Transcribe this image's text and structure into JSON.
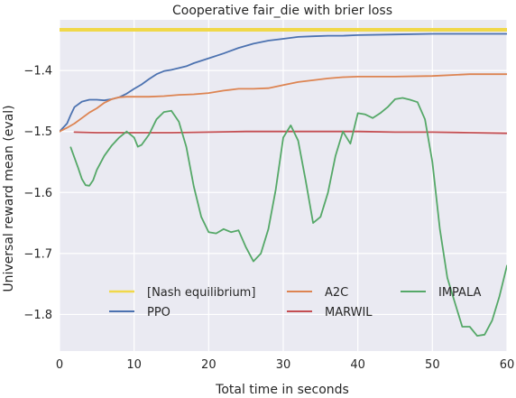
{
  "chart_data": {
    "type": "line",
    "title": "Cooperative fair_die with brier loss",
    "xlabel": "Total time in seconds",
    "ylabel": "Universal reward mean (eval)",
    "xlim": [
      0,
      60
    ],
    "ylim": [
      -1.86,
      -1.317
    ],
    "x_ticks": [
      0,
      10,
      20,
      30,
      40,
      50,
      60
    ],
    "y_ticks": [
      -1.8,
      -1.7,
      -1.6,
      -1.5,
      -1.4
    ],
    "grid": true,
    "background": "#eaeaf2",
    "legend_placement": "lower-center",
    "series": [
      {
        "name": "[Nash equilibrium]",
        "color": "#f0d84a",
        "x": [
          0,
          60
        ],
        "y": [
          -1.3333,
          -1.3333
        ]
      },
      {
        "name": "PPO",
        "color": "#4c72b0",
        "x": [
          0,
          1,
          1.5,
          2,
          3,
          4,
          5,
          6,
          7,
          8,
          9,
          10,
          11,
          12,
          13,
          14,
          15,
          16,
          17,
          18,
          20,
          22,
          24,
          26,
          28,
          30,
          32,
          34,
          36,
          38,
          40,
          45,
          50,
          55,
          60
        ],
        "y": [
          -1.5,
          -1.487,
          -1.473,
          -1.46,
          -1.451,
          -1.448,
          -1.448,
          -1.449,
          -1.447,
          -1.444,
          -1.438,
          -1.43,
          -1.423,
          -1.414,
          -1.406,
          -1.401,
          -1.399,
          -1.396,
          -1.393,
          -1.388,
          -1.38,
          -1.372,
          -1.363,
          -1.356,
          -1.351,
          -1.348,
          -1.345,
          -1.344,
          -1.343,
          -1.343,
          -1.342,
          -1.341,
          -1.34,
          -1.34,
          -1.34
        ]
      },
      {
        "name": "A2C",
        "color": "#dd8452",
        "x": [
          0,
          1,
          2,
          3,
          4,
          5,
          6,
          7,
          8,
          9,
          10,
          12,
          14,
          16,
          18,
          20,
          22,
          24,
          26,
          28,
          30,
          32,
          34,
          36,
          38,
          40,
          45,
          50,
          55,
          60
        ],
        "y": [
          -1.5,
          -1.494,
          -1.487,
          -1.478,
          -1.469,
          -1.462,
          -1.453,
          -1.447,
          -1.444,
          -1.443,
          -1.443,
          -1.443,
          -1.442,
          -1.44,
          -1.439,
          -1.437,
          -1.433,
          -1.43,
          -1.43,
          -1.429,
          -1.424,
          -1.419,
          -1.416,
          -1.413,
          -1.411,
          -1.41,
          -1.41,
          -1.409,
          -1.406,
          -1.406
        ]
      },
      {
        "name": "MARWIL",
        "color": "#c44e52",
        "x": [
          2,
          5,
          10,
          15,
          20,
          25,
          30,
          35,
          40,
          45,
          50,
          55,
          60
        ],
        "y": [
          -1.501,
          -1.502,
          -1.502,
          -1.502,
          -1.501,
          -1.5,
          -1.5,
          -1.5,
          -1.5,
          -1.501,
          -1.501,
          -1.502,
          -1.503
        ]
      },
      {
        "name": "IMPALA",
        "color": "#55a868",
        "x": [
          1.5,
          2.5,
          3,
          3.5,
          4,
          4.5,
          5,
          6,
          7,
          8,
          9,
          10,
          10.5,
          11,
          12,
          13,
          14,
          15,
          16,
          17,
          18,
          19,
          20,
          21,
          22,
          23,
          24,
          25,
          26,
          27,
          28,
          29,
          30,
          31,
          32,
          33,
          34,
          35,
          36,
          37,
          38,
          39,
          40,
          41,
          42,
          43,
          44,
          45,
          46,
          47,
          48,
          49,
          50,
          51,
          52,
          53,
          54,
          55,
          56,
          57,
          58,
          59,
          60
        ],
        "y": [
          -1.526,
          -1.56,
          -1.578,
          -1.588,
          -1.589,
          -1.58,
          -1.563,
          -1.54,
          -1.523,
          -1.51,
          -1.5,
          -1.51,
          -1.525,
          -1.522,
          -1.505,
          -1.48,
          -1.468,
          -1.466,
          -1.484,
          -1.525,
          -1.59,
          -1.64,
          -1.665,
          -1.667,
          -1.66,
          -1.665,
          -1.662,
          -1.69,
          -1.713,
          -1.7,
          -1.66,
          -1.595,
          -1.51,
          -1.49,
          -1.515,
          -1.58,
          -1.65,
          -1.64,
          -1.6,
          -1.54,
          -1.5,
          -1.52,
          -1.47,
          -1.472,
          -1.478,
          -1.47,
          -1.46,
          -1.447,
          -1.445,
          -1.448,
          -1.452,
          -1.48,
          -1.55,
          -1.66,
          -1.74,
          -1.78,
          -1.82,
          -1.82,
          -1.835,
          -1.833,
          -1.81,
          -1.77,
          -1.72
        ]
      }
    ]
  }
}
